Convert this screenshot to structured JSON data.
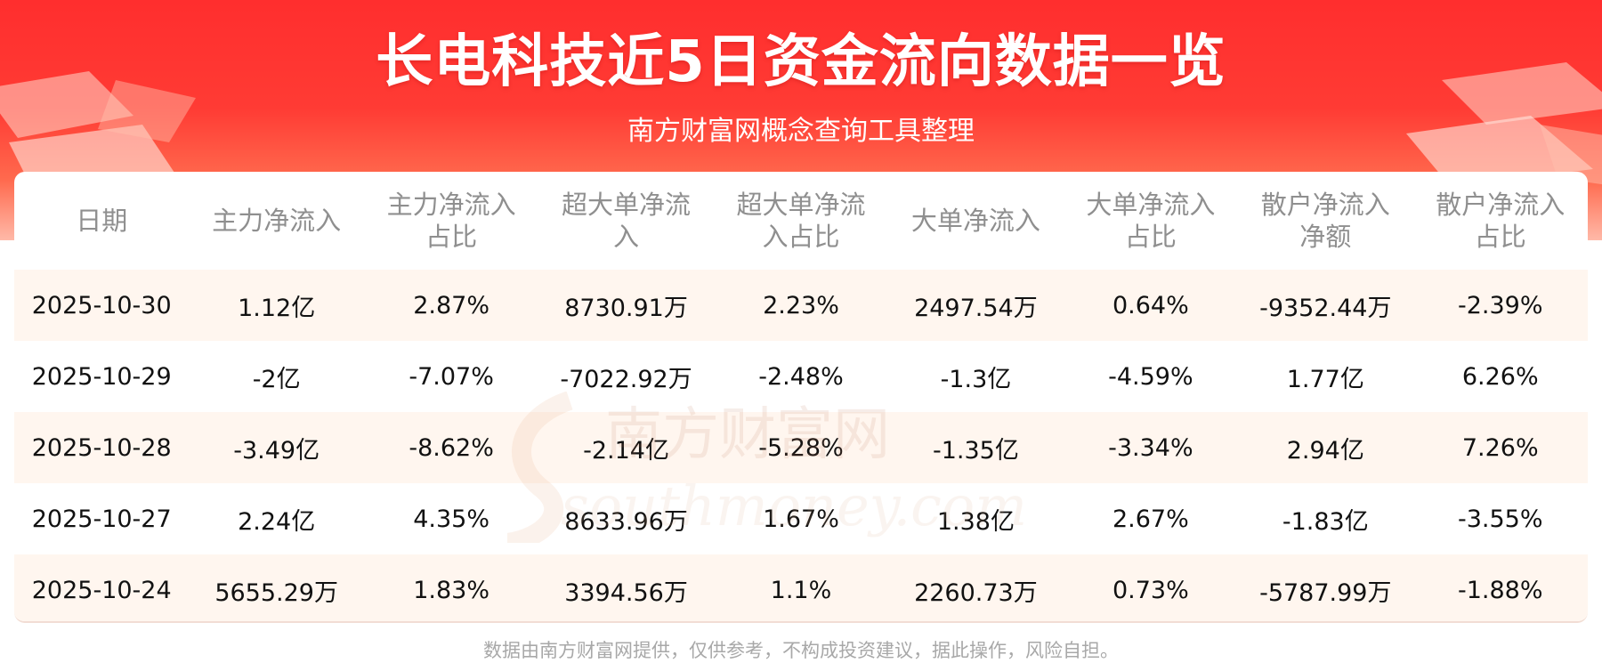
{
  "header": {
    "title": "长电科技近5日资金流向数据一览",
    "subtitle": "南方财富网概念查询工具整理"
  },
  "table": {
    "columns": [
      [
        "日期"
      ],
      [
        "主力净流入"
      ],
      [
        "主力净流入",
        "占比"
      ],
      [
        "超大单净流",
        "入"
      ],
      [
        "超大单净流",
        "入占比"
      ],
      [
        "大单净流入"
      ],
      [
        "大单净流入",
        "占比"
      ],
      [
        "散户净流入",
        "净额"
      ],
      [
        "散户净流入",
        "占比"
      ]
    ],
    "rows": [
      [
        "2025-10-30",
        "1.12亿",
        "2.87%",
        "8730.91万",
        "2.23%",
        "2497.54万",
        "0.64%",
        "-9352.44万",
        "-2.39%"
      ],
      [
        "2025-10-29",
        "-2亿",
        "-7.07%",
        "-7022.92万",
        "-2.48%",
        "-1.3亿",
        "-4.59%",
        "1.77亿",
        "6.26%"
      ],
      [
        "2025-10-28",
        "-3.49亿",
        "-8.62%",
        "-2.14亿",
        "-5.28%",
        "-1.35亿",
        "-3.34%",
        "2.94亿",
        "7.26%"
      ],
      [
        "2025-10-27",
        "2.24亿",
        "4.35%",
        "8633.96万",
        "1.67%",
        "1.38亿",
        "2.67%",
        "-1.83亿",
        "-3.55%"
      ],
      [
        "2025-10-24",
        "5655.29万",
        "1.83%",
        "3394.56万",
        "1.1%",
        "2260.73万",
        "0.73%",
        "-5787.99万",
        "-1.88%"
      ]
    ]
  },
  "watermark": {
    "brand_cn": "南方财富网",
    "brand_en": "southmoney.com"
  },
  "footer": {
    "disclaimer": "数据由南方财富网提供，仅供参考，不构成投资建议，据此操作，风险自担。"
  },
  "colors": {
    "banner_red": "#ff2e2e",
    "row_stripe": "#fff6ef",
    "header_text": "#8f8f8f"
  }
}
